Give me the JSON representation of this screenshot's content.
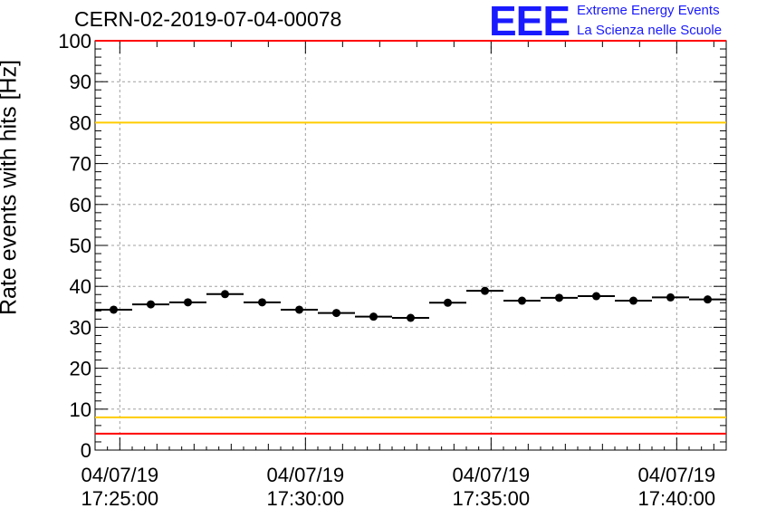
{
  "header": {
    "title": "CERN-02-2019-07-04-00078",
    "logo_text": "EEE",
    "logo_line1": "Extreme Energy Events",
    "logo_line2": "La Scienza nelle Scuole"
  },
  "colors": {
    "limit_red": "#ff0000",
    "limit_yellow": "#ffcc00",
    "logo_blue": "#1a1aff",
    "marker": "#000000",
    "grid": "#a0a0a0"
  },
  "chart_data": {
    "type": "scatter",
    "title": "CERN-02-2019-07-04-00078",
    "xlabel": "",
    "ylabel": "Rate events with hits [Hz]",
    "ylim": [
      0,
      100
    ],
    "xlim": [
      "2019-07-04 17:24:20",
      "2019-07-04 17:41:20"
    ],
    "grid": true,
    "yticks": [
      0,
      10,
      20,
      30,
      40,
      50,
      60,
      70,
      80,
      90,
      100
    ],
    "xticks": [
      {
        "date": "04/07/19",
        "time": "17:25:00"
      },
      {
        "date": "04/07/19",
        "time": "17:30:00"
      },
      {
        "date": "04/07/19",
        "time": "17:35:00"
      },
      {
        "date": "04/07/19",
        "time": "17:40:00"
      }
    ],
    "reference_lines": [
      {
        "y": 100,
        "color": "red"
      },
      {
        "y": 80,
        "color": "yellow"
      },
      {
        "y": 8,
        "color": "yellow"
      },
      {
        "y": 4,
        "color": "red"
      }
    ],
    "series": [
      {
        "points": [
          {
            "x": "2019-07-04 17:24:50",
            "y": 34.3
          },
          {
            "x": "2019-07-04 17:25:50",
            "y": 35.6
          },
          {
            "x": "2019-07-04 17:26:50",
            "y": 36.1
          },
          {
            "x": "2019-07-04 17:27:50",
            "y": 38.1
          },
          {
            "x": "2019-07-04 17:28:50",
            "y": 36.1
          },
          {
            "x": "2019-07-04 17:29:50",
            "y": 34.3
          },
          {
            "x": "2019-07-04 17:30:50",
            "y": 33.5
          },
          {
            "x": "2019-07-04 17:31:50",
            "y": 32.6
          },
          {
            "x": "2019-07-04 17:32:50",
            "y": 32.3
          },
          {
            "x": "2019-07-04 17:33:50",
            "y": 36.0
          },
          {
            "x": "2019-07-04 17:34:50",
            "y": 38.9
          },
          {
            "x": "2019-07-04 17:35:50",
            "y": 36.5
          },
          {
            "x": "2019-07-04 17:36:50",
            "y": 37.2
          },
          {
            "x": "2019-07-04 17:37:50",
            "y": 37.6
          },
          {
            "x": "2019-07-04 17:38:50",
            "y": 36.5
          },
          {
            "x": "2019-07-04 17:39:50",
            "y": 37.3
          },
          {
            "x": "2019-07-04 17:40:50",
            "y": 36.8
          }
        ]
      }
    ]
  }
}
